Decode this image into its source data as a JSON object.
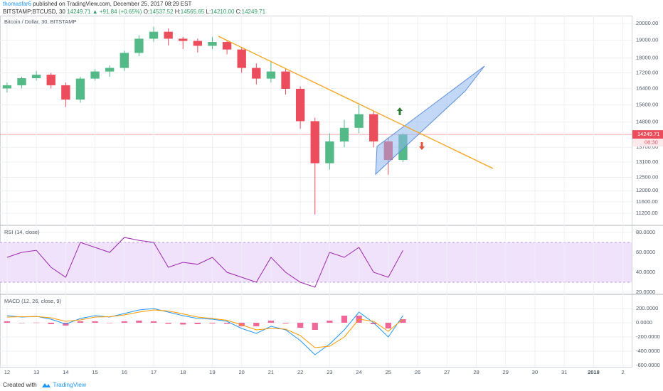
{
  "header": {
    "author": "thomasfar6",
    "byline": "published on TradingView.com, December 25, 2017 08:29 EST",
    "symbol": "BITSTAMP:BTCUSD, 30",
    "last": "14249.71",
    "change": "▲ +91.84 (+0.65%)",
    "o_label": "O:",
    "o": "14537.52",
    "h_label": "H:",
    "h": "14565.65",
    "l_label": "L:",
    "l": "14210.00",
    "c_label": "C:",
    "c": "14249.71"
  },
  "chart_data": [
    {
      "type": "candlestick",
      "title": "Bitcoin / Dollar, 30, BITSTAMP",
      "log_scale": true,
      "up_color": "#53b987",
      "down_color": "#eb4d5c",
      "x": [
        12,
        12.5,
        13,
        13.5,
        14,
        14.5,
        15,
        15.5,
        16,
        16.5,
        17,
        17.5,
        18,
        18.5,
        19,
        19.5,
        20,
        20.5,
        21,
        21.5,
        22,
        22.5,
        23,
        23.5,
        24,
        24.5,
        25,
        25.5
      ],
      "open": [
        16400,
        16560,
        16920,
        17100,
        16560,
        15850,
        16900,
        17270,
        17460,
        18280,
        19090,
        19500,
        19090,
        18960,
        18680,
        18900,
        18470,
        17460,
        16900,
        17270,
        16380,
        14840,
        13050,
        13950,
        14540,
        15160,
        13950,
        13180
      ],
      "high": [
        16700,
        17000,
        17300,
        17200,
        16700,
        17000,
        17400,
        17600,
        18400,
        19300,
        19800,
        19700,
        19200,
        19100,
        19200,
        19000,
        18600,
        17700,
        17800,
        17400,
        16500,
        15000,
        14300,
        14900,
        15600,
        15300,
        14100,
        14300
      ],
      "low": [
        16200,
        16400,
        16800,
        16400,
        15500,
        15700,
        16800,
        17000,
        17300,
        18100,
        18900,
        18700,
        18500,
        18300,
        18500,
        18200,
        17200,
        16600,
        16700,
        16100,
        14500,
        11160,
        12800,
        13700,
        14300,
        13700,
        12600,
        13100
      ],
      "close": [
        16560,
        16920,
        17100,
        16560,
        15850,
        16900,
        17270,
        17460,
        18280,
        19090,
        19500,
        19090,
        18960,
        18680,
        18900,
        18470,
        17460,
        16900,
        17270,
        16380,
        14840,
        13050,
        13950,
        14540,
        15160,
        13950,
        13180,
        14249.71
      ],
      "xlim": [
        11.76,
        33.3
      ],
      "ylim": [
        10818,
        20484
      ],
      "yticks": [
        {
          "value": 20000,
          "label": "20000.00"
        },
        {
          "value": 19000,
          "label": "19000.00"
        },
        {
          "value": 18000,
          "label": "18000.00"
        },
        {
          "value": 17200,
          "label": "17200.00"
        },
        {
          "value": 16400,
          "label": "16400.00"
        },
        {
          "value": 15600,
          "label": "15600.00"
        },
        {
          "value": 14800,
          "label": "14800.00"
        },
        {
          "value": 13700,
          "label": "13700.00"
        },
        {
          "value": 13100,
          "label": "13100.00"
        },
        {
          "value": 12500,
          "label": "12500.00"
        },
        {
          "value": 12000,
          "label": "12000.00"
        },
        {
          "value": 11600,
          "label": "11600.00"
        },
        {
          "value": 11200,
          "label": "11200.00"
        }
      ],
      "last_price": 14249.71,
      "countdown": "08:30",
      "last_color": "#eb4d5c",
      "grid": true
    },
    {
      "type": "line",
      "title": "RSI (14, close)",
      "color": "#9c27b0",
      "x": [
        12,
        12.5,
        13,
        13.5,
        14,
        14.5,
        15,
        15.5,
        16,
        16.5,
        17,
        17.5,
        18,
        18.5,
        19,
        19.5,
        20,
        20.5,
        21,
        21.5,
        22,
        22.5,
        23,
        23.5,
        24,
        24.5,
        25,
        25.5
      ],
      "values": [
        55,
        60,
        62,
        45,
        35,
        70,
        65,
        60,
        75,
        72,
        70,
        45,
        50,
        48,
        55,
        40,
        35,
        30,
        55,
        40,
        30,
        25,
        60,
        55,
        65,
        40,
        35,
        62
      ],
      "band": [
        30,
        70
      ],
      "band_color": "#f1e2fb",
      "xlim": [
        11.76,
        33.3
      ],
      "ylim": [
        18.6,
        86.4
      ],
      "yticks": [
        {
          "value": 80,
          "label": "80.0000"
        },
        {
          "value": 60,
          "label": "60.0000"
        },
        {
          "value": 40,
          "label": "40.0000"
        },
        {
          "value": 20,
          "label": "20.0000"
        }
      ],
      "grid": true
    },
    {
      "type": "macd",
      "title": "MACD (12, 26, close, 9)",
      "x": [
        12,
        12.5,
        13,
        13.5,
        14,
        14.5,
        15,
        15.5,
        16,
        16.5,
        17,
        17.5,
        18,
        18.5,
        19,
        19.5,
        20,
        20.5,
        21,
        21.5,
        22,
        22.5,
        23,
        23.5,
        24,
        24.5,
        25,
        25.5
      ],
      "series": [
        {
          "type": "bar",
          "color": "#f0679a",
          "values": [
            20,
            -5,
            2,
            -20,
            -40,
            20,
            20,
            -5,
            20,
            30,
            20,
            -15,
            -25,
            -20,
            -10,
            -15,
            -50,
            -50,
            30,
            -10,
            -70,
            -100,
            30,
            100,
            100,
            -20,
            -80,
            50
          ]
        },
        {
          "type": "line",
          "color": "#2196f3",
          "values": [
            100,
            80,
            90,
            50,
            -20,
            60,
            100,
            80,
            130,
            180,
            200,
            150,
            100,
            60,
            50,
            20,
            -80,
            -150,
            -50,
            -100,
            -250,
            -450,
            -300,
            -100,
            150,
            0,
            -200,
            100
          ]
        },
        {
          "type": "line",
          "color": "#ff9800",
          "values": [
            80,
            85,
            88,
            70,
            20,
            40,
            80,
            85,
            110,
            150,
            180,
            165,
            125,
            80,
            60,
            35,
            -30,
            -100,
            -80,
            -90,
            -180,
            -350,
            -330,
            -200,
            50,
            20,
            -120,
            50
          ]
        }
      ],
      "xlim": [
        11.76,
        33.3
      ],
      "ylim": [
        -620,
        390
      ],
      "yticks": [
        {
          "value": 200,
          "label": "200.0000"
        },
        {
          "value": 0,
          "label": "0.0000"
        },
        {
          "value": -200,
          "label": "-200.0000"
        },
        {
          "value": -400,
          "label": "-400.0000"
        },
        {
          "value": -600,
          "label": "-600.0000"
        }
      ],
      "xticks": [
        12,
        13,
        14,
        15,
        16,
        17,
        18,
        19,
        20,
        21,
        22,
        23,
        24,
        25,
        26,
        27,
        28,
        29,
        30,
        31,
        {
          "value": 32,
          "label": "2018",
          "bold": true
        },
        {
          "value": 33,
          "label": "2"
        }
      ],
      "grid": true
    }
  ],
  "footer": {
    "created": "Created with",
    "brand": "TradingView"
  }
}
